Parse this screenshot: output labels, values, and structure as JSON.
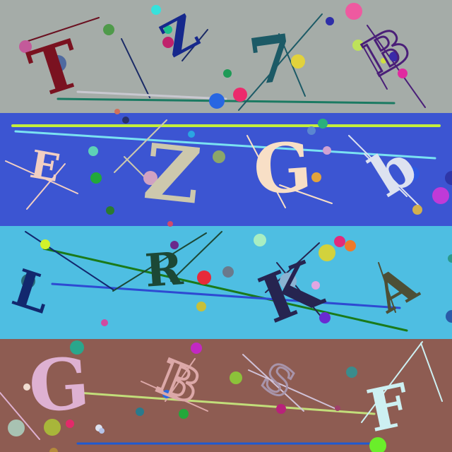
{
  "rows": [
    {
      "bg": "#a5aca8",
      "chars": [
        {
          "text": "T",
          "color": "#7a1220"
        },
        {
          "text": "Z",
          "color": "#16288c"
        },
        {
          "text": "7",
          "color": "#1c5a66"
        },
        {
          "text": "B",
          "color": "#4a1f78"
        }
      ]
    },
    {
      "bg": "#3c55d2",
      "chars": [
        {
          "text": "E",
          "color": "#f2cfc2"
        },
        {
          "text": "Z",
          "color": "#cdc8ad"
        },
        {
          "text": "G",
          "color": "#f8dfc6"
        },
        {
          "text": "b",
          "color": "#dde2f0"
        }
      ]
    },
    {
      "bg": "#4ebee2",
      "chars": [
        {
          "text": "L",
          "color": "#12286e"
        },
        {
          "text": "R",
          "color": "#1c4836"
        },
        {
          "text": "K",
          "color": "#262450"
        },
        {
          "text": "A",
          "color": "#4d4f36"
        }
      ]
    },
    {
      "bg": "#8e5c52",
      "chars": [
        {
          "text": "G",
          "color": "#deb1d2"
        },
        {
          "text": "B",
          "color": "#dca8a8"
        },
        {
          "text": "S",
          "color": "#a894aa"
        },
        {
          "text": "F",
          "color": "#cdf0f2"
        }
      ]
    }
  ]
}
